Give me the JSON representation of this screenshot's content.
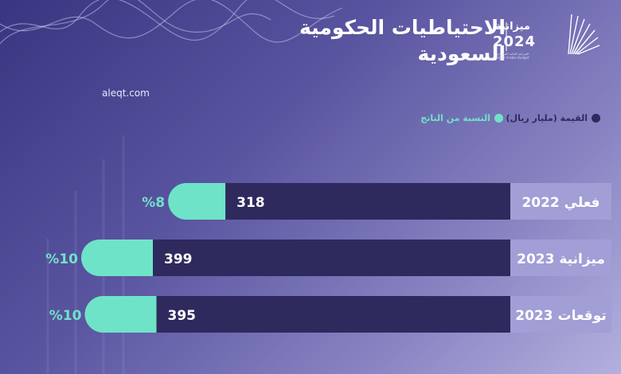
{
  "header": {
    "title": "الاحتياطيات الحكومية السعودية",
    "logo_text": "ميزانية",
    "logo_year": "2024",
    "logo_subtitle_ar": "الميزانية العامة السعودية",
    "logo_subtitle_en": "Saudi Arabia Budget"
  },
  "source": "aleqt.com",
  "legend": {
    "value_label": "القيمة (مليار ريال)",
    "pct_label": "النسبة من الناتج"
  },
  "colors": {
    "value_bar": "#2e2a5e",
    "pct_bar": "#6fe3c8",
    "category_bg": "#a29ed6"
  },
  "chart_data": {
    "type": "bar",
    "orientation": "horizontal",
    "categories": [
      "فعلي 2022",
      "ميزانية 2023",
      "توقعات 2023"
    ],
    "series": [
      {
        "name": "القيمة (مليار ريال)",
        "values": [
          318,
          399,
          395
        ]
      },
      {
        "name": "النسبة من الناتج",
        "values": [
          8,
          10,
          10
        ],
        "labels": [
          "%8",
          "%10",
          "%10"
        ]
      }
    ]
  }
}
